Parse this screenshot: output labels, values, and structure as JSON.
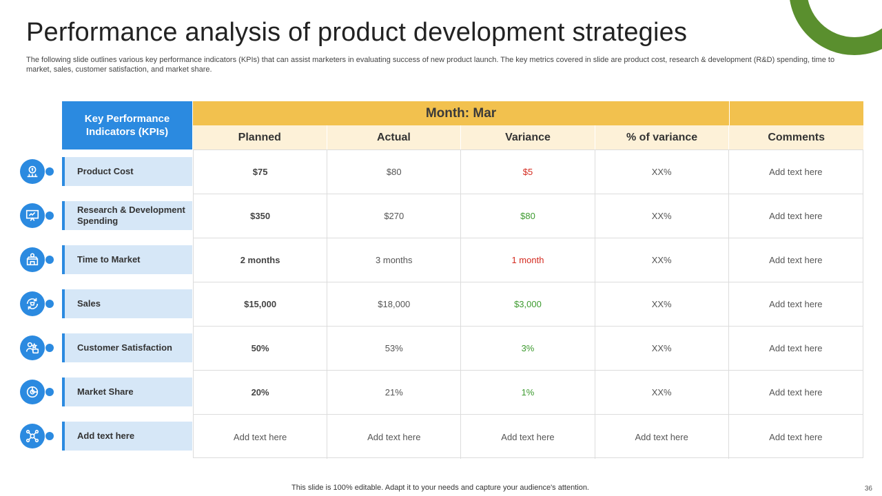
{
  "slide": {
    "title": "Performance analysis of product development strategies",
    "subtitle": "The following slide outlines various key performance indicators (KPIs) that can assist marketers in evaluating success of new product launch. The key metrics covered in slide are product cost, research & development (R&D) spending, time to market, sales, customer satisfaction, and market share.",
    "footer": "This slide is 100% editable. Adapt it to your needs and capture your audience's attention.",
    "page_number": "36"
  },
  "colors": {
    "accent_blue": "#2b8ae0",
    "header_yellow": "#f2c14e",
    "negative_red": "#d42a1f",
    "positive_green": "#3c9a2e",
    "ring_green": "#5a8f2e"
  },
  "table": {
    "kpi_header": "Key Performance Indicators (KPIs)",
    "month_label": "Month: Mar",
    "columns": [
      "Planned",
      "Actual",
      "Variance",
      "% of variance",
      "Comments"
    ],
    "rows": [
      {
        "kpi": "Product Cost",
        "icon": "cost-icon",
        "planned": "$75",
        "actual": "$80",
        "variance": "$5",
        "variance_tone": "neg",
        "pct": "XX%",
        "comment": "Add text here"
      },
      {
        "kpi": "Research & Development Spending",
        "icon": "research-icon",
        "planned": "$350",
        "actual": "$270",
        "variance": "$80",
        "variance_tone": "pos",
        "pct": "XX%",
        "comment": "Add text here"
      },
      {
        "kpi": "Time to Market",
        "icon": "store-icon",
        "planned": "2 months",
        "actual": "3 months",
        "variance": "1 month",
        "variance_tone": "neg",
        "pct": "XX%",
        "comment": "Add text here"
      },
      {
        "kpi": "Sales",
        "icon": "sales-cycle-icon",
        "planned": "$15,000",
        "actual": "$18,000",
        "variance": "$3,000",
        "variance_tone": "pos",
        "pct": "XX%",
        "comment": "Add text here"
      },
      {
        "kpi": "Customer Satisfaction",
        "icon": "customer-icon",
        "planned": "50%",
        "actual": "53%",
        "variance": "3%",
        "variance_tone": "pos",
        "pct": "XX%",
        "comment": "Add text here"
      },
      {
        "kpi": "Market Share",
        "icon": "market-share-icon",
        "planned": "20%",
        "actual": "21%",
        "variance": "1%",
        "variance_tone": "pos",
        "pct": "XX%",
        "comment": "Add text here"
      },
      {
        "kpi": "Add text here",
        "icon": "network-icon",
        "planned": "Add text here",
        "actual": "Add text here",
        "variance": "Add text here",
        "variance_tone": "plain",
        "pct": "Add text here",
        "comment": "Add text here"
      }
    ]
  }
}
